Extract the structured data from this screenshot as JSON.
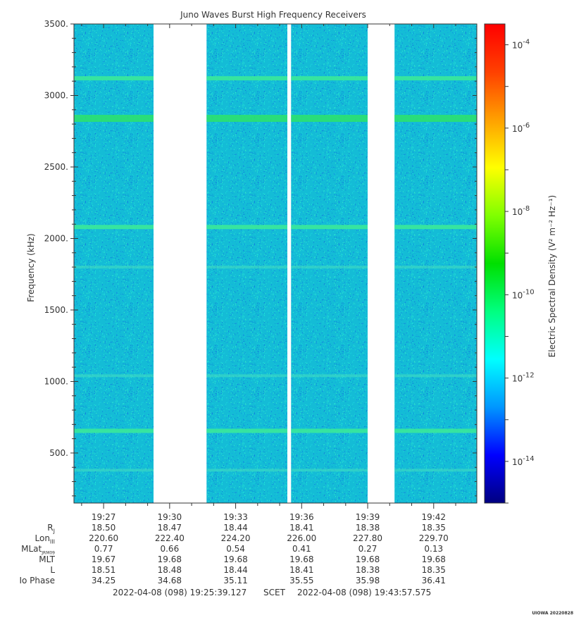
{
  "chart_data": {
    "type": "heatmap",
    "title": "Juno Waves Burst High Frequency Receivers",
    "ylabel": "Frequency (kHz)",
    "ylim": [
      150,
      3500
    ],
    "yticks": [
      "3500.",
      "3000.",
      "2500.",
      "2000.",
      "1500.",
      "1000.",
      "500."
    ],
    "ytick_values": [
      3500,
      3000,
      2500,
      2000,
      1500,
      1000,
      500
    ],
    "xlim": [
      "19:25:39",
      "19:43:57"
    ],
    "xticks": [
      "19:27",
      "19:30",
      "19:33",
      "19:36",
      "19:39",
      "19:42"
    ],
    "xtick_minutes": [
      27,
      30,
      33,
      36,
      39,
      42
    ],
    "data_segments_minutes": [
      [
        25.65,
        29.27
      ],
      [
        31.68,
        35.35
      ],
      [
        35.52,
        39.0
      ],
      [
        40.22,
        43.96
      ]
    ],
    "emission_bands_khz": [
      {
        "freq": 3120,
        "strength": "medium"
      },
      {
        "freq": 2840,
        "strength": "strong"
      },
      {
        "freq": 2080,
        "strength": "medium"
      },
      {
        "freq": 1800,
        "strength": "weak"
      },
      {
        "freq": 1040,
        "strength": "weak"
      },
      {
        "freq": 655,
        "strength": "medium"
      },
      {
        "freq": 380,
        "strength": "weak"
      }
    ],
    "colorbar": {
      "label": "Electric Spectral Density (V² m⁻² Hz⁻¹)",
      "scale": "log",
      "range_exponents": [
        -15,
        -3.5
      ],
      "tick_exponents": [
        "-4",
        "-6",
        "-8",
        "-10",
        "-12",
        "-14"
      ],
      "tick_values": [
        -4,
        -6,
        -8,
        -10,
        -12,
        -14
      ],
      "background_level_exponent": -12,
      "colors": [
        "#000080",
        "#0000ff",
        "#0096ff",
        "#00ffff",
        "#00ff80",
        "#00e000",
        "#80ff00",
        "#ffff00",
        "#ffa000",
        "#ff4000",
        "#ff0000"
      ]
    }
  },
  "ephemeris": {
    "rows": [
      {
        "label": "R",
        "sub": "J",
        "values": [
          "18.50",
          "18.47",
          "18.44",
          "18.41",
          "18.38",
          "18.35"
        ]
      },
      {
        "label": "Lon",
        "sub": "III",
        "values": [
          "220.60",
          "222.40",
          "224.20",
          "226.00",
          "227.80",
          "229.70"
        ]
      },
      {
        "label": "MLat",
        "sub": "JRM09",
        "values": [
          "0.77",
          "0.66",
          "0.54",
          "0.41",
          "0.27",
          "0.13"
        ]
      },
      {
        "label": "MLT",
        "sub": "",
        "values": [
          "19.67",
          "19.68",
          "19.68",
          "19.68",
          "19.68",
          "19.68"
        ]
      },
      {
        "label": "L",
        "sub": "",
        "values": [
          "18.51",
          "18.48",
          "18.44",
          "18.41",
          "18.38",
          "18.35"
        ]
      },
      {
        "label": "Io Phase",
        "sub": "",
        "values": [
          "34.25",
          "34.68",
          "35.11",
          "35.55",
          "35.98",
          "36.41"
        ]
      }
    ]
  },
  "footer": {
    "start": "2022-04-08 (098) 19:25:39.127",
    "scet": "SCET",
    "end": "2022-04-08 (098) 19:43:57.575"
  },
  "stamp": "UIOWA 20220828"
}
